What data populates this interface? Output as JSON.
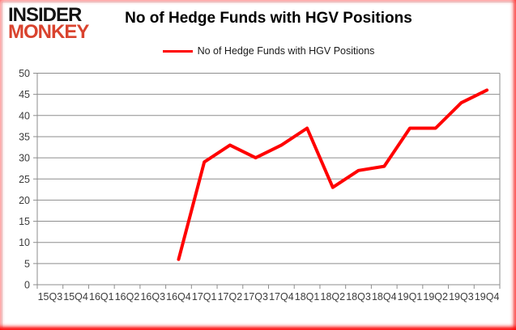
{
  "logo": {
    "line1": "INSIDER",
    "line2": "MONKEY"
  },
  "header": {
    "title": "No of Hedge Funds with HGV Positions"
  },
  "legend": {
    "label": "No of Hedge Funds with HGV Positions"
  },
  "colors": {
    "line_red": "#ff0000",
    "logo_red": "#d9432e",
    "grid": "#8e8e8e",
    "axis": "#8e8e8e",
    "tick_text": "#3c3c3c",
    "border_glow": "#ff0000"
  },
  "chart_data": {
    "type": "line",
    "title": "No of Hedge Funds with HGV Positions",
    "categories": [
      "15Q3",
      "15Q4",
      "16Q1",
      "16Q2",
      "16Q3",
      "16Q4",
      "17Q1",
      "17Q2",
      "17Q3",
      "17Q4",
      "18Q1",
      "18Q2",
      "18Q3",
      "18Q4",
      "19Q1",
      "19Q2",
      "19Q3",
      "19Q4"
    ],
    "series": [
      {
        "name": "No of Hedge Funds with HGV Positions",
        "color": "#ff0000",
        "values": [
          null,
          null,
          null,
          null,
          null,
          6,
          29,
          33,
          30,
          33,
          37,
          23,
          27,
          28,
          37,
          37,
          43,
          46
        ]
      }
    ],
    "xlabel": "",
    "ylabel": "",
    "ylim": [
      0,
      50
    ],
    "ytick_step": 5,
    "grid": "horizontal",
    "legend_position": "top-center"
  }
}
